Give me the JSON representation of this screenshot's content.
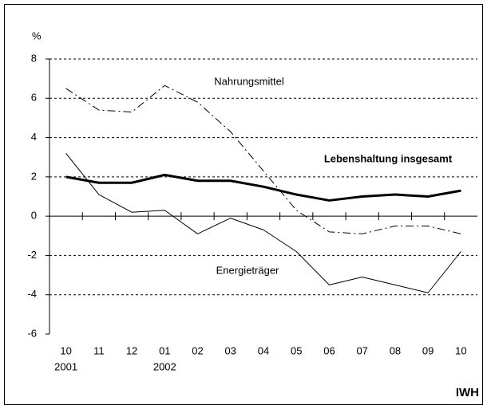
{
  "chart_data": {
    "type": "line",
    "y_unit_label": "%",
    "categories": [
      "10",
      "11",
      "12",
      "01",
      "02",
      "03",
      "04",
      "05",
      "06",
      "07",
      "08",
      "09",
      "10"
    ],
    "year_labels": [
      "2001",
      null,
      null,
      "2002",
      null,
      null,
      null,
      null,
      null,
      null,
      null,
      null,
      null
    ],
    "series": [
      {
        "name": "Nahrungsmittel",
        "color": "#000000",
        "style": "dashdot",
        "width": 1,
        "values": [
          6.5,
          5.4,
          5.3,
          6.65,
          5.8,
          4.3,
          2.3,
          0.3,
          -0.8,
          -0.9,
          -0.5,
          -0.5,
          -0.9
        ]
      },
      {
        "name": "Lebenshaltung insgesamt",
        "color": "#000000",
        "style": "solid",
        "width": 3,
        "values": [
          2.0,
          1.7,
          1.7,
          2.1,
          1.8,
          1.8,
          1.5,
          1.1,
          0.8,
          1.0,
          1.1,
          1.0,
          1.3
        ]
      },
      {
        "name": "Energieträger",
        "color": "#000000",
        "style": "solid",
        "width": 1,
        "values": [
          3.2,
          1.1,
          0.2,
          0.3,
          -0.9,
          -0.1,
          -0.7,
          -1.8,
          -3.5,
          -3.1,
          -3.5,
          -3.9,
          -1.8
        ]
      }
    ],
    "ylim": [
      -6,
      8
    ],
    "yticks": [
      -6,
      -4,
      -2,
      0,
      2,
      4,
      6,
      8
    ],
    "grid": true,
    "source": "IWH"
  }
}
